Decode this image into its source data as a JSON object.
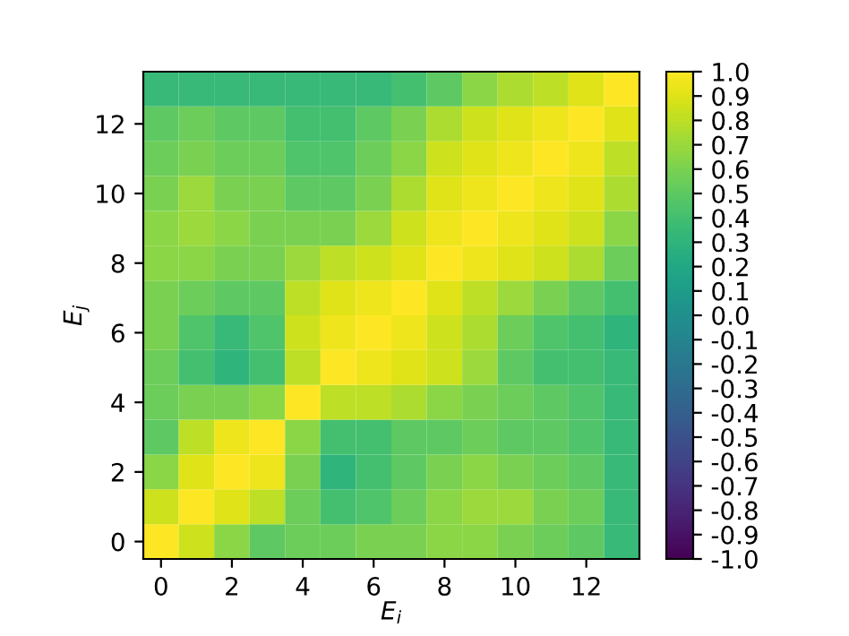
{
  "chart_data": {
    "type": "heatmap",
    "xlabel": "E$_{i}$",
    "ylabel": "E$_{j}$",
    "categories": [
      "0",
      null,
      "2",
      null,
      "4",
      null,
      "6",
      null,
      "8",
      null,
      "10",
      null,
      "12",
      null
    ],
    "y_categories": [
      null,
      "12",
      null,
      "10",
      null,
      "8",
      null,
      "6",
      null,
      "4",
      null,
      "2",
      null,
      "0"
    ],
    "cells": [
      [
        0.35,
        0.35,
        0.35,
        0.35,
        0.35,
        0.35,
        0.35,
        0.4,
        0.5,
        0.65,
        0.75,
        0.8,
        0.9,
        1.0
      ],
      [
        0.5,
        0.55,
        0.5,
        0.5,
        0.4,
        0.4,
        0.5,
        0.6,
        0.75,
        0.85,
        0.9,
        0.95,
        1.0,
        0.9
      ],
      [
        0.55,
        0.6,
        0.55,
        0.55,
        0.45,
        0.45,
        0.55,
        0.65,
        0.85,
        0.9,
        0.95,
        1.0,
        0.95,
        0.8
      ],
      [
        0.6,
        0.7,
        0.6,
        0.6,
        0.5,
        0.5,
        0.6,
        0.75,
        0.9,
        0.95,
        1.0,
        0.95,
        0.9,
        0.75
      ],
      [
        0.65,
        0.7,
        0.65,
        0.6,
        0.6,
        0.6,
        0.7,
        0.85,
        0.95,
        1.0,
        0.95,
        0.9,
        0.85,
        0.65
      ],
      [
        0.65,
        0.65,
        0.6,
        0.6,
        0.7,
        0.8,
        0.85,
        0.9,
        1.0,
        0.95,
        0.9,
        0.85,
        0.75,
        0.55
      ],
      [
        0.6,
        0.55,
        0.5,
        0.5,
        0.8,
        0.9,
        0.95,
        1.0,
        0.9,
        0.8,
        0.7,
        0.6,
        0.5,
        0.4
      ],
      [
        0.6,
        0.45,
        0.35,
        0.45,
        0.85,
        0.95,
        1.0,
        0.95,
        0.85,
        0.75,
        0.55,
        0.45,
        0.4,
        0.3
      ],
      [
        0.55,
        0.4,
        0.3,
        0.4,
        0.8,
        1.0,
        0.95,
        0.9,
        0.85,
        0.7,
        0.5,
        0.4,
        0.4,
        0.35
      ],
      [
        0.55,
        0.6,
        0.6,
        0.65,
        1.0,
        0.8,
        0.8,
        0.75,
        0.65,
        0.6,
        0.55,
        0.5,
        0.45,
        0.35
      ],
      [
        0.5,
        0.8,
        0.95,
        1.0,
        0.65,
        0.4,
        0.4,
        0.5,
        0.5,
        0.55,
        0.5,
        0.5,
        0.45,
        0.35
      ],
      [
        0.65,
        0.9,
        1.0,
        0.95,
        0.6,
        0.3,
        0.4,
        0.5,
        0.6,
        0.65,
        0.6,
        0.55,
        0.5,
        0.35
      ],
      [
        0.85,
        1.0,
        0.9,
        0.8,
        0.55,
        0.4,
        0.45,
        0.55,
        0.65,
        0.7,
        0.7,
        0.6,
        0.55,
        0.35
      ],
      [
        1.0,
        0.85,
        0.65,
        0.5,
        0.55,
        0.55,
        0.6,
        0.6,
        0.65,
        0.65,
        0.6,
        0.55,
        0.5,
        0.35
      ]
    ],
    "clim": [
      -1,
      1
    ],
    "cticks": [
      {
        "value": 1,
        "label": "1.0"
      },
      {
        "value": 0.9,
        "label": "0.9"
      },
      {
        "value": 0.8,
        "label": "0.8"
      },
      {
        "value": 0.7,
        "label": "0.7"
      },
      {
        "value": 0.6,
        "label": "0.6"
      },
      {
        "value": 0.5,
        "label": "0.5"
      },
      {
        "value": 0.4,
        "label": "0.4"
      },
      {
        "value": 0.3,
        "label": "0.3"
      },
      {
        "value": 0.2,
        "label": "0.2"
      },
      {
        "value": 0.1,
        "label": "0.1"
      },
      {
        "value": 0,
        "label": "0.0"
      },
      {
        "value": -0.1,
        "label": "-0.1"
      },
      {
        "value": -0.2,
        "label": "-0.2"
      },
      {
        "value": -0.3,
        "label": "-0.3"
      },
      {
        "value": -0.4,
        "label": "-0.4"
      },
      {
        "value": -0.5,
        "label": "-0.5"
      },
      {
        "value": -0.6,
        "label": "-0.6"
      },
      {
        "value": -0.7,
        "label": "-0.7"
      },
      {
        "value": -0.8,
        "label": "-0.8"
      },
      {
        "value": -0.9,
        "label": "-0.9"
      },
      {
        "value": -1,
        "label": "-1.0"
      }
    ]
  }
}
